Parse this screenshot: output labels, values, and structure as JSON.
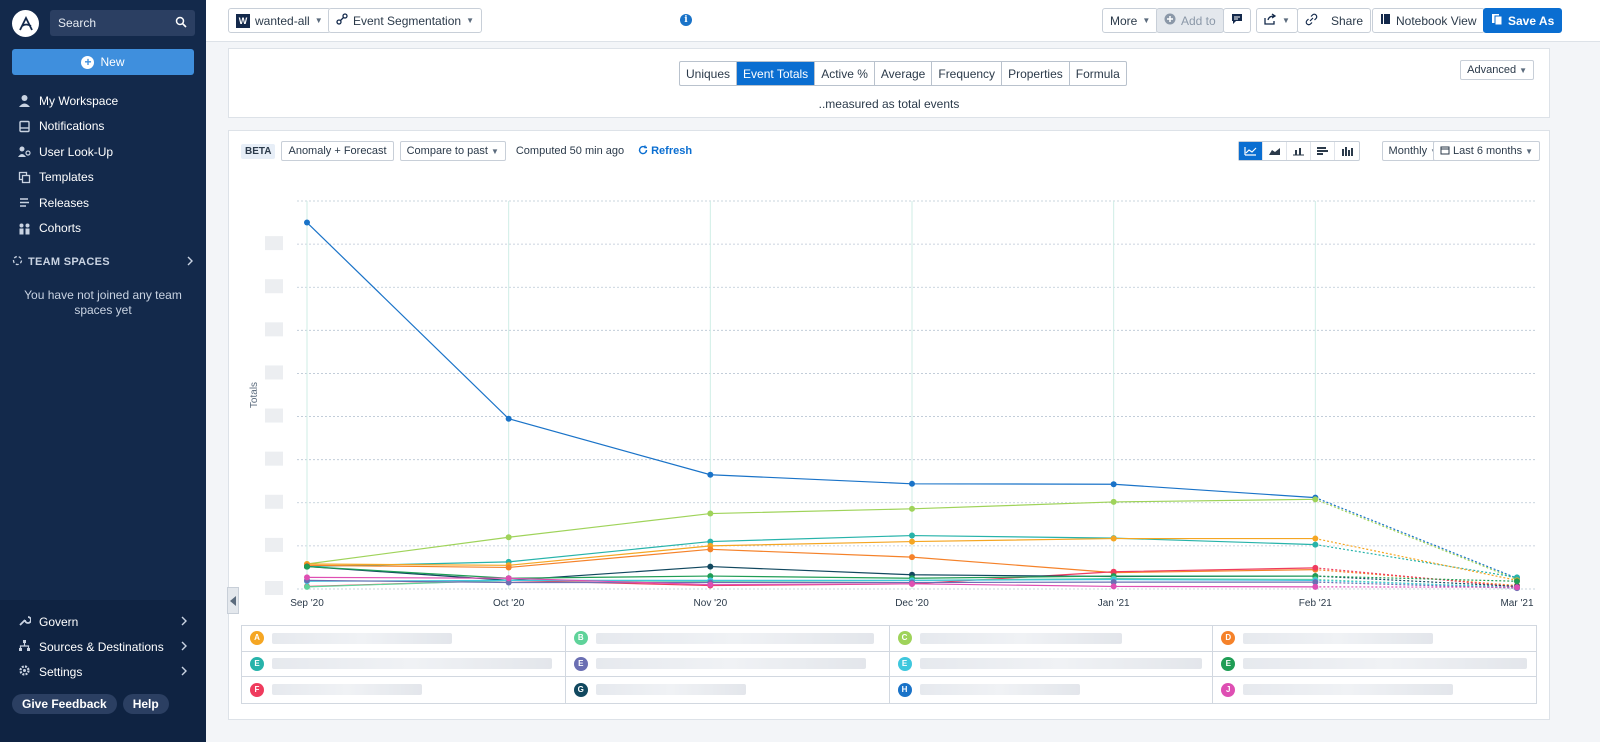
{
  "sidebar": {
    "search_label": "Search",
    "new_label": "New",
    "items": [
      {
        "label": "My Workspace",
        "icon": "person-icon"
      },
      {
        "label": "Notifications",
        "icon": "inbox-icon"
      },
      {
        "label": "User Look-Up",
        "icon": "user-lookup-icon"
      },
      {
        "label": "Templates",
        "icon": "templates-icon"
      },
      {
        "label": "Releases",
        "icon": "releases-icon"
      },
      {
        "label": "Cohorts",
        "icon": "cohorts-icon"
      }
    ],
    "team_spaces_label": "TEAM SPACES",
    "team_spaces_message": "You have not joined any team spaces yet",
    "bottom_items": [
      {
        "label": "Govern",
        "icon": "wrench-icon"
      },
      {
        "label": "Sources & Destinations",
        "icon": "hierarchy-icon"
      },
      {
        "label": "Settings",
        "icon": "gear-icon"
      }
    ],
    "feedback_label": "Give Feedback",
    "help_label": "Help"
  },
  "topbar": {
    "project_badge": "W",
    "project": "wanted-all",
    "chart_type": "Event Segmentation",
    "more": "More",
    "add_to": "Add to",
    "share": "Share",
    "notebook_view": "Notebook View",
    "save_as": "Save As"
  },
  "measure": {
    "tabs": [
      "Uniques",
      "Event Totals",
      "Active %",
      "Average",
      "Frequency",
      "Properties",
      "Formula"
    ],
    "active_tab": "Event Totals",
    "measured_text": "..measured as total events",
    "advanced": "Advanced"
  },
  "chart_toolbar": {
    "beta": "BETA",
    "anomaly": "Anomaly + Forecast",
    "compare": "Compare to past",
    "computed": "Computed 50 min ago",
    "refresh": "Refresh",
    "interval": "Monthly",
    "range": "Last 6 months"
  },
  "chart_data": {
    "type": "line",
    "ylabel": "Totals",
    "x": [
      "Sep '20",
      "Oct '20",
      "Nov '20",
      "Dec '20",
      "Jan '21",
      "Feb '21",
      "Mar '21"
    ],
    "ylim": [
      0,
      9
    ],
    "y_tick_count": 9,
    "partial_last_point": true,
    "series": [
      {
        "key": "H",
        "color": "#1a73c8",
        "values": [
          8.5,
          3.95,
          2.65,
          2.44,
          2.43,
          2.12,
          0.25
        ]
      },
      {
        "key": "C",
        "color": "#9fd35a",
        "values": [
          0.58,
          1.2,
          1.75,
          1.86,
          2.02,
          2.08,
          0.22
        ]
      },
      {
        "key": "E",
        "color": "#27b3aa",
        "values": [
          0.52,
          0.63,
          1.1,
          1.24,
          1.18,
          1.03,
          0.27
        ]
      },
      {
        "key": "A",
        "color": "#f5a623",
        "values": [
          0.58,
          0.55,
          1.0,
          1.1,
          1.17,
          1.17,
          0.2
        ]
      },
      {
        "key": "D",
        "color": "#f5822a",
        "values": [
          0.55,
          0.5,
          0.92,
          0.74,
          0.38,
          0.45,
          0.08
        ]
      },
      {
        "key": "F",
        "color": "#ef3b5d",
        "values": [
          0.06,
          0.2,
          0.08,
          0.12,
          0.4,
          0.49,
          0.05
        ]
      },
      {
        "key": "G",
        "color": "#11485f",
        "values": [
          0.52,
          0.2,
          0.52,
          0.33,
          0.29,
          0.3,
          0.06
        ]
      },
      {
        "key": "E2",
        "color": "#1f9d55",
        "values": [
          0.52,
          0.25,
          0.3,
          0.25,
          0.3,
          0.3,
          0.18
        ]
      },
      {
        "key": "B",
        "color": "#5fd39a",
        "values": [
          0.05,
          0.2,
          0.18,
          0.2,
          0.24,
          0.22,
          0.03
        ]
      },
      {
        "key": "E3",
        "color": "#3fc7dd",
        "values": [
          0.18,
          0.2,
          0.2,
          0.2,
          0.22,
          0.2,
          0.04
        ]
      },
      {
        "key": "E4",
        "color": "#6b6fb3",
        "values": [
          0.2,
          0.15,
          0.15,
          0.15,
          0.16,
          0.16,
          0.02
        ]
      },
      {
        "key": "J",
        "color": "#de4fb3",
        "values": [
          0.27,
          0.25,
          0.1,
          0.12,
          0.06,
          0.05,
          0.04
        ]
      }
    ]
  },
  "legend": {
    "rows": [
      [
        {
          "badge": "A",
          "color": "#f5a623",
          "w": 180
        },
        {
          "badge": "B",
          "color": "#5fd39a",
          "w": 278
        },
        {
          "badge": "C",
          "color": "#9fd35a",
          "w": 202
        },
        {
          "badge": "D",
          "color": "#f5822a",
          "w": 190
        }
      ],
      [
        {
          "badge": "E",
          "color": "#27b3aa",
          "w": 280
        },
        {
          "badge": "E",
          "color": "#6b6fb3",
          "w": 270
        },
        {
          "badge": "E",
          "color": "#3fc7dd",
          "w": 282
        },
        {
          "badge": "E",
          "color": "#1f9d55",
          "w": 284
        }
      ],
      [
        {
          "badge": "F",
          "color": "#ef3b5d",
          "w": 150
        },
        {
          "badge": "G",
          "color": "#11485f",
          "w": 150
        },
        {
          "badge": "H",
          "color": "#1a73c8",
          "w": 160
        },
        {
          "badge": "J",
          "color": "#de4fb3",
          "w": 210
        }
      ]
    ]
  }
}
